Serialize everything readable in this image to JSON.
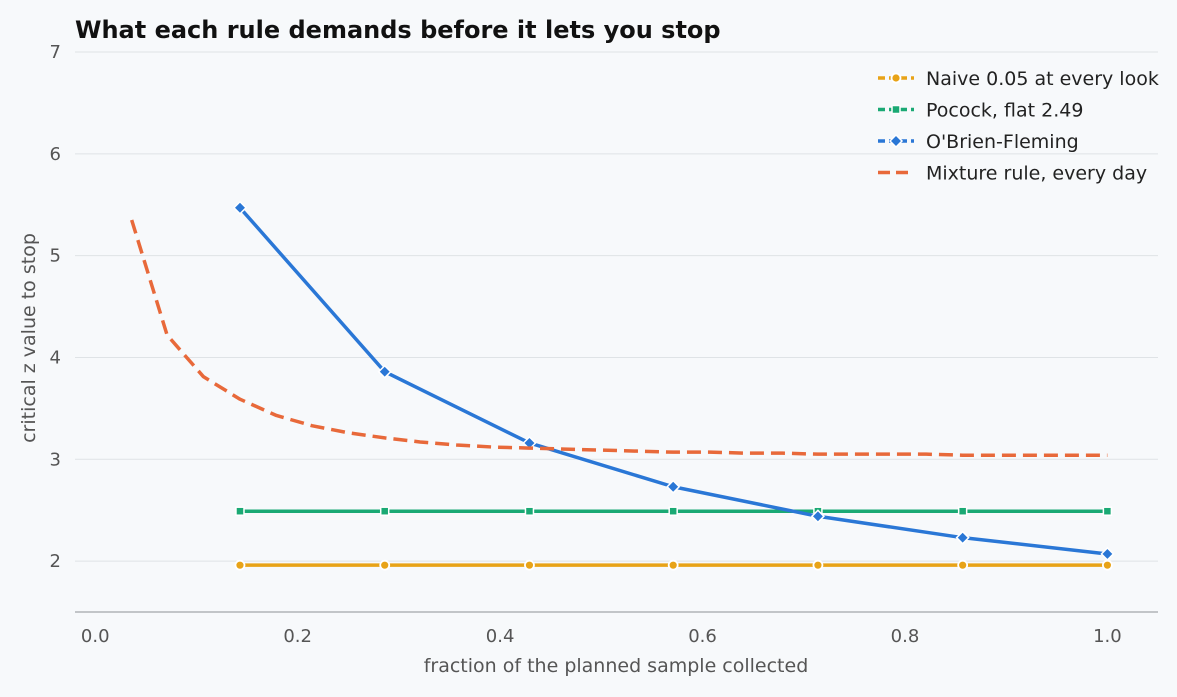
{
  "chart_data": {
    "type": "line",
    "title": "What each rule demands before it lets you stop",
    "xlabel": "fraction of the planned sample collected",
    "ylabel": "critical z value to stop",
    "xlim": [
      -0.02,
      1.05
    ],
    "ylim": [
      1.5,
      7.0
    ],
    "xticks": [
      0.0,
      0.2,
      0.4,
      0.6,
      0.8,
      1.0
    ],
    "xtick_labels": [
      "0.0",
      "0.2",
      "0.4",
      "0.6",
      "0.8",
      "1.0"
    ],
    "yticks": [
      2,
      3,
      4,
      5,
      6,
      7
    ],
    "ytick_labels": [
      "2",
      "3",
      "4",
      "5",
      "6",
      "7"
    ],
    "grid": "horizontal",
    "legend": "top-right",
    "series": [
      {
        "name": "Naive 0.05 at every look",
        "color": "#e8a317",
        "dash": "solid",
        "marker": "circle",
        "x": [
          0.143,
          0.286,
          0.429,
          0.571,
          0.714,
          0.857,
          1.0
        ],
        "y": [
          1.96,
          1.96,
          1.96,
          1.96,
          1.96,
          1.96,
          1.96
        ]
      },
      {
        "name": "Pocock, flat 2.49",
        "color": "#1aa974",
        "dash": "solid",
        "marker": "square",
        "x": [
          0.143,
          0.286,
          0.429,
          0.571,
          0.714,
          0.857,
          1.0
        ],
        "y": [
          2.49,
          2.49,
          2.49,
          2.49,
          2.49,
          2.49,
          2.49
        ]
      },
      {
        "name": "O'Brien-Fleming",
        "color": "#2a77d6",
        "dash": "solid",
        "marker": "diamond",
        "x": [
          0.143,
          0.286,
          0.429,
          0.571,
          0.714,
          0.857,
          1.0
        ],
        "y": [
          5.47,
          3.86,
          3.16,
          2.73,
          2.44,
          2.23,
          2.07
        ]
      },
      {
        "name": "Mixture rule, every day",
        "color": "#e8693a",
        "dash": "dashed",
        "marker": "none",
        "x": [
          0.036,
          0.071,
          0.107,
          0.143,
          0.179,
          0.214,
          0.25,
          0.286,
          0.321,
          0.357,
          0.393,
          0.429,
          0.464,
          0.5,
          0.536,
          0.571,
          0.607,
          0.643,
          0.679,
          0.714,
          0.75,
          0.786,
          0.821,
          0.857,
          0.893,
          0.929,
          0.964,
          1.0
        ],
        "y": [
          5.35,
          4.22,
          3.81,
          3.59,
          3.43,
          3.33,
          3.26,
          3.21,
          3.17,
          3.14,
          3.12,
          3.11,
          3.1,
          3.09,
          3.08,
          3.07,
          3.07,
          3.06,
          3.06,
          3.05,
          3.05,
          3.05,
          3.05,
          3.04,
          3.04,
          3.04,
          3.04,
          3.04
        ]
      }
    ]
  }
}
